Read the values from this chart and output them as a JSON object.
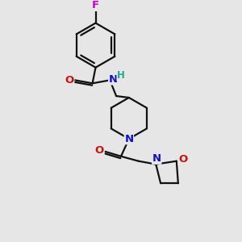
{
  "bg_color": "#e6e6e6",
  "atom_colors": {
    "C": "#000000",
    "N": "#1010cc",
    "O": "#cc1010",
    "F": "#cc00cc",
    "H": "#20aa88"
  },
  "bond_color": "#111111",
  "lw": 1.6
}
